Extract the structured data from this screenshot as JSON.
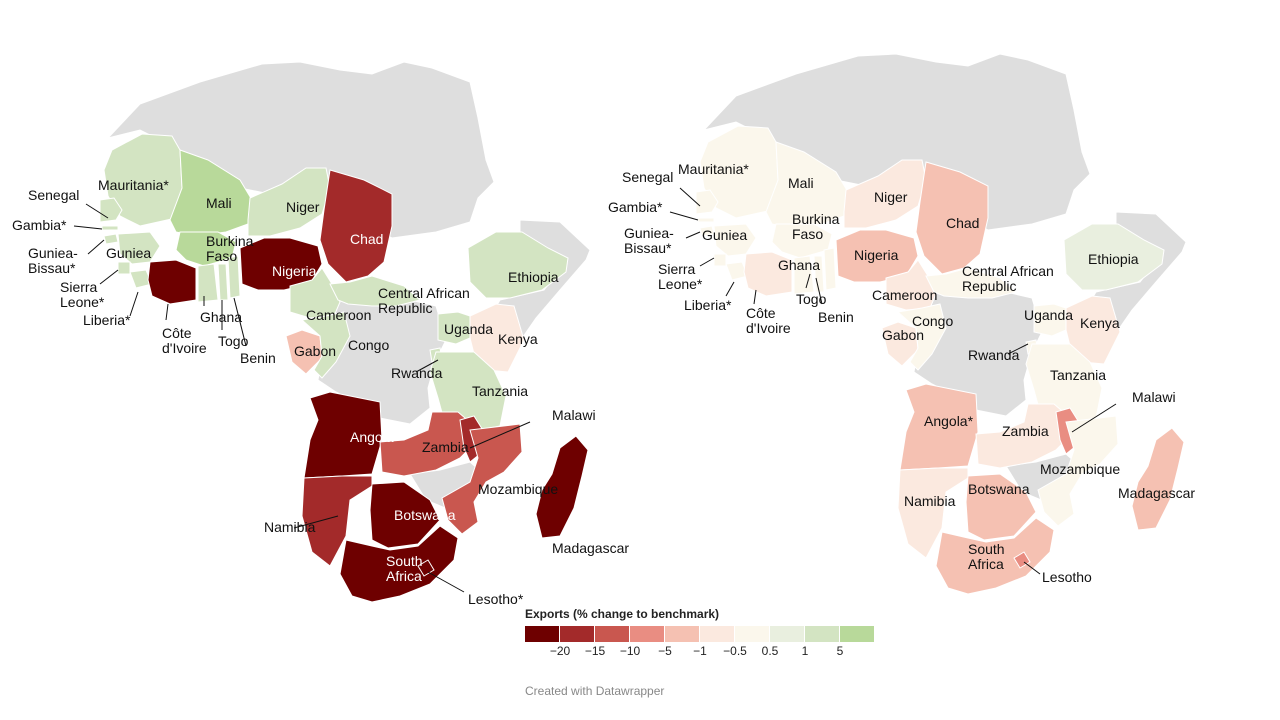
{
  "colors": {
    "no_data": "#dedede",
    "bins": [
      "#6e0000",
      "#a32a2a",
      "#c9574f",
      "#e98d82",
      "#f5c1b2",
      "#fbe9df",
      "#fbf7ec",
      "#e9efdf",
      "#d3e4c2",
      "#b8d99a"
    ]
  },
  "legend": {
    "title": "Exports (% change to benchmark)",
    "ticks": [
      "−20",
      "−15",
      "−10",
      "−5",
      "−1",
      "−0.5",
      "0.5",
      "1",
      "5"
    ]
  },
  "credit": "Created with Datawrapper",
  "maps": [
    {
      "id": "left",
      "countries": {
        "mauritania": {
          "label": "Mauritania*",
          "bin": 8
        },
        "mali": {
          "label": "Mali",
          "bin": 9
        },
        "niger": {
          "label": "Niger",
          "bin": 8
        },
        "chad": {
          "label": "Chad",
          "bin": 1
        },
        "senegal": {
          "label": "Senegal",
          "bin": 8
        },
        "gambia": {
          "label": "Gambia*",
          "bin": 8
        },
        "guinea_bissau": {
          "label": "Guniea-\nBissau*",
          "bin": 8
        },
        "guinea": {
          "label": "Guniea",
          "bin": 8
        },
        "sierra_leone": {
          "label": "Sierra\nLeone*",
          "bin": 8
        },
        "liberia": {
          "label": "Liberia*",
          "bin": 8
        },
        "cote_divoire": {
          "label": "Côte\nd'Ivoire",
          "bin": 0
        },
        "burkina_faso": {
          "label": "Burkina\nFaso",
          "bin": 9
        },
        "ghana": {
          "label": "Ghana",
          "bin": 8
        },
        "togo": {
          "label": "Togo",
          "bin": 8
        },
        "benin": {
          "label": "Benin",
          "bin": 8
        },
        "nigeria": {
          "label": "Nigeria",
          "bin": 0
        },
        "cameroon": {
          "label": "Cameroon",
          "bin": 8
        },
        "car": {
          "label": "Central African\nRepublic",
          "bin": 8
        },
        "gabon": {
          "label": "Gabon",
          "bin": 4
        },
        "congo": {
          "label": "Congo",
          "bin": 8
        },
        "ethiopia": {
          "label": "Ethiopia",
          "bin": 8
        },
        "uganda": {
          "label": "Uganda",
          "bin": 8
        },
        "kenya": {
          "label": "Kenya",
          "bin": 5
        },
        "rwanda": {
          "label": "Rwanda",
          "bin": 8
        },
        "tanzania": {
          "label": "Tanzania",
          "bin": 8
        },
        "angola": {
          "label": "Angola*",
          "bin": 0
        },
        "zambia": {
          "label": "Zambia",
          "bin": 2
        },
        "malawi": {
          "label": "Malawi",
          "bin": 1
        },
        "mozambique": {
          "label": "Mozambique",
          "bin": 2
        },
        "namibia": {
          "label": "Namibia",
          "bin": 1
        },
        "botswana": {
          "label": "Botswana",
          "bin": 0
        },
        "south_africa": {
          "label": "South\nAfrica",
          "bin": 0
        },
        "lesotho": {
          "label": "Lesotho*",
          "bin": 0
        },
        "madagascar": {
          "label": "Madagascar",
          "bin": 0
        }
      }
    },
    {
      "id": "right",
      "countries": {
        "mauritania": {
          "label": "Mauritania*",
          "bin": 6
        },
        "mali": {
          "label": "Mali",
          "bin": 6
        },
        "niger": {
          "label": "Niger",
          "bin": 5
        },
        "chad": {
          "label": "Chad",
          "bin": 4
        },
        "senegal": {
          "label": "Senegal",
          "bin": 6
        },
        "gambia": {
          "label": "Gambia*",
          "bin": 6
        },
        "guinea_bissau": {
          "label": "Guniea-\nBissau*",
          "bin": 6
        },
        "guinea": {
          "label": "Guniea",
          "bin": 6
        },
        "sierra_leone": {
          "label": "Sierra\nLeone*",
          "bin": 6
        },
        "liberia": {
          "label": "Liberia*",
          "bin": 6
        },
        "cote_divoire": {
          "label": "Côte\nd'Ivoire",
          "bin": 5
        },
        "burkina_faso": {
          "label": "Burkina\nFaso",
          "bin": 6
        },
        "ghana": {
          "label": "Ghana",
          "bin": 6
        },
        "togo": {
          "label": "Togo",
          "bin": 6
        },
        "benin": {
          "label": "Benin",
          "bin": 6
        },
        "nigeria": {
          "label": "Nigeria",
          "bin": 4
        },
        "cameroon": {
          "label": "Cameroon",
          "bin": 5
        },
        "car": {
          "label": "Central African\nRepublic",
          "bin": 6
        },
        "gabon": {
          "label": "Gabon",
          "bin": 5
        },
        "congo": {
          "label": "Congo",
          "bin": 6
        },
        "ethiopia": {
          "label": "Ethiopia",
          "bin": 7
        },
        "uganda": {
          "label": "Uganda",
          "bin": 6
        },
        "kenya": {
          "label": "Kenya",
          "bin": 5
        },
        "rwanda": {
          "label": "Rwanda",
          "bin": 6
        },
        "tanzania": {
          "label": "Tanzania",
          "bin": 6
        },
        "angola": {
          "label": "Angola*",
          "bin": 4
        },
        "zambia": {
          "label": "Zambia",
          "bin": 5
        },
        "malawi": {
          "label": "Malawi",
          "bin": 3
        },
        "mozambique": {
          "label": "Mozambique",
          "bin": 6
        },
        "namibia": {
          "label": "Namibia",
          "bin": 5
        },
        "botswana": {
          "label": "Botswana",
          "bin": 4
        },
        "south_africa": {
          "label": "South\nAfrica",
          "bin": 4
        },
        "lesotho": {
          "label": "Lesotho",
          "bin": 3
        },
        "madagascar": {
          "label": "Madagascar",
          "bin": 4
        }
      }
    }
  ]
}
